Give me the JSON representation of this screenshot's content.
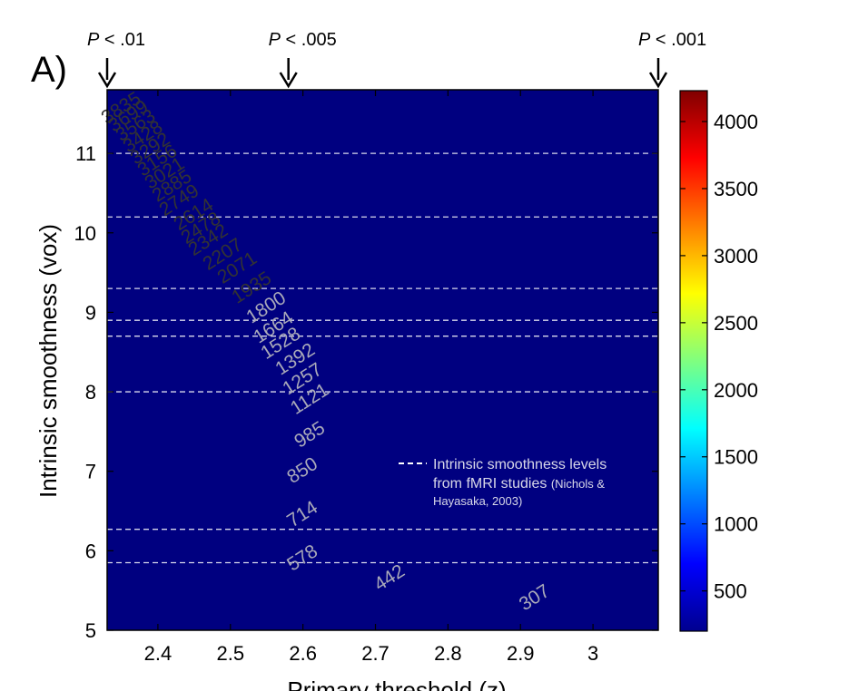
{
  "panel_label": "A)",
  "chart_data": {
    "type": "contour",
    "xlabel": "Primary threshold (z)",
    "ylabel": "Intrinsic smoothness (vox)",
    "xlim": [
      2.33,
      3.09
    ],
    "ylim": [
      5,
      11.8
    ],
    "x_ticks": [
      2.4,
      2.5,
      2.6,
      2.7,
      2.8,
      2.9,
      3
    ],
    "x_tick_labels": [
      "2.4",
      "2.5",
      "2.6",
      "2.7",
      "2.8",
      "2.9",
      "3"
    ],
    "y_ticks": [
      5,
      6,
      7,
      8,
      9,
      10,
      11
    ],
    "y_tick_labels": [
      "5",
      "6",
      "7",
      "8",
      "9",
      "10",
      "11"
    ],
    "colorbar": {
      "colormap": "jet",
      "range": [
        200,
        4230
      ],
      "ticks": [
        500,
        1000,
        1500,
        2000,
        2500,
        3000,
        3500,
        4000
      ],
      "tick_labels": [
        "500",
        "1000",
        "1500",
        "2000",
        "2500",
        "3000",
        "3500",
        "4000"
      ]
    },
    "contour_levels": [
      307,
      442,
      578,
      714,
      850,
      985,
      1121,
      1257,
      1392,
      1528,
      1664,
      1800,
      1935,
      2071,
      2207,
      2342,
      2478,
      2614,
      2749,
      2885,
      3021,
      3156,
      3292,
      3428,
      3563,
      3699,
      3835
    ],
    "contour_labels": [
      {
        "text": "307",
        "x": 2.92,
        "y": 5.4
      },
      {
        "text": "442",
        "x": 2.72,
        "y": 5.65
      },
      {
        "text": "578",
        "x": 2.6,
        "y": 5.9
      },
      {
        "text": "714",
        "x": 2.6,
        "y": 6.45
      },
      {
        "text": "850",
        "x": 2.6,
        "y": 7.0
      },
      {
        "text": "985",
        "x": 2.61,
        "y": 7.45
      },
      {
        "text": "1121",
        "x": 2.61,
        "y": 7.9
      },
      {
        "text": "1257",
        "x": 2.6,
        "y": 8.15
      },
      {
        "text": "1392",
        "x": 2.59,
        "y": 8.4
      },
      {
        "text": "1528",
        "x": 2.57,
        "y": 8.6
      },
      {
        "text": "1664",
        "x": 2.56,
        "y": 8.8
      },
      {
        "text": "1800",
        "x": 2.55,
        "y": 9.05
      },
      {
        "text": "1935",
        "x": 2.53,
        "y": 9.3
      },
      {
        "text": "2071",
        "x": 2.51,
        "y": 9.55
      },
      {
        "text": "2207",
        "x": 2.49,
        "y": 9.72
      },
      {
        "text": "2342",
        "x": 2.47,
        "y": 9.9
      },
      {
        "text": "2478",
        "x": 2.46,
        "y": 10.05
      },
      {
        "text": "2614",
        "x": 2.45,
        "y": 10.22
      },
      {
        "text": "2749",
        "x": 2.43,
        "y": 10.4
      },
      {
        "text": "2885",
        "x": 2.42,
        "y": 10.58
      },
      {
        "text": "3021",
        "x": 2.41,
        "y": 10.74
      },
      {
        "text": "3156",
        "x": 2.4,
        "y": 10.9
      },
      {
        "text": "3292",
        "x": 2.39,
        "y": 11.05
      },
      {
        "text": "3428",
        "x": 2.38,
        "y": 11.2
      },
      {
        "text": "3563",
        "x": 2.37,
        "y": 11.34
      },
      {
        "text": "3699",
        "x": 2.36,
        "y": 11.46
      },
      {
        "text": "3835",
        "x": 2.35,
        "y": 11.56
      }
    ],
    "reference_lines": {
      "smoothness_levels": [
        5.85,
        6.27,
        8.0,
        8.7,
        8.9,
        9.3,
        10.2,
        11.0
      ],
      "style": "white dashed"
    },
    "p_markers": [
      {
        "prefix": "P",
        "label": " < .01",
        "z": 2.33
      },
      {
        "prefix": "P",
        "label": " < .005",
        "z": 2.58
      },
      {
        "prefix": "P",
        "label": " < .001",
        "z": 3.09
      }
    ],
    "legend": {
      "placement": "right-middle",
      "line1": "Intrinsic smoothness levels",
      "line2_main": "from fMRI studies ",
      "line2_small": "(Nichols &",
      "line3_small": "Hayasaka, 2003)"
    }
  }
}
